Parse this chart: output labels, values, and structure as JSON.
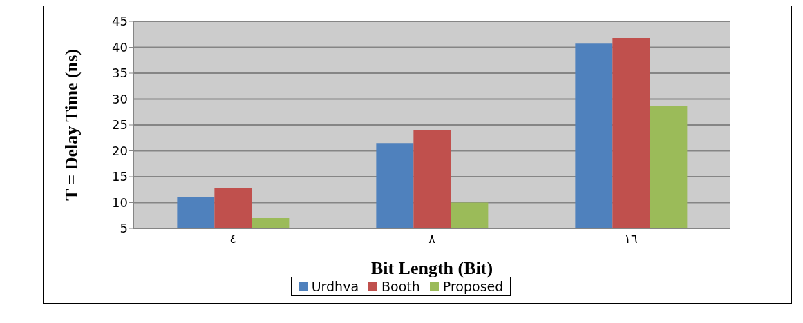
{
  "chart_data": {
    "type": "bar",
    "xlabel": "Bit Length  (Bit)",
    "ylabel": "T = Delay Time  (ns)",
    "categories": [
      "٤",
      "٨",
      "١٦"
    ],
    "series": [
      {
        "name": "Urdhva",
        "color": "#4f81bd",
        "values": [
          11,
          21.5,
          40.7
        ]
      },
      {
        "name": "Booth",
        "color": "#c0504d",
        "values": [
          12.8,
          24,
          41.8
        ]
      },
      {
        "name": "Proposed",
        "color": "#9bbb59",
        "values": [
          7,
          10,
          28.7
        ]
      }
    ],
    "ylim": [
      5,
      45
    ],
    "yticks": [
      5,
      10,
      15,
      20,
      25,
      30,
      35,
      40,
      45
    ],
    "grid": "y",
    "legend": "bottom"
  }
}
